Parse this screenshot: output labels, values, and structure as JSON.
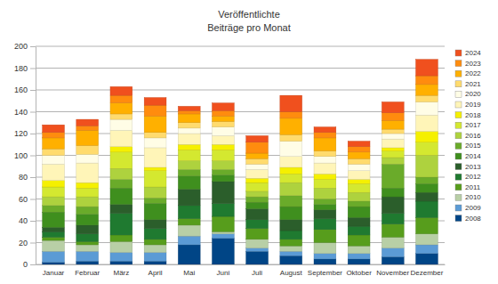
{
  "chart_data": {
    "type": "bar",
    "stacked": true,
    "grid": true,
    "legend": "right",
    "title": "Veröffentlichte",
    "subtitle": "Beiträge pro Monat",
    "categories": [
      "Januar",
      "Februar",
      "März",
      "April",
      "Mai",
      "Juni",
      "Juli",
      "August",
      "September",
      "Oktober",
      "November",
      "Dezember"
    ],
    "ylim": [
      0,
      200
    ],
    "yticks": [
      0,
      20,
      40,
      60,
      80,
      100,
      120,
      140,
      160,
      180,
      200
    ],
    "series": [
      {
        "name": "2008",
        "color": "#004586",
        "values": [
          2,
          3,
          3,
          3,
          18,
          24,
          12,
          8,
          5,
          5,
          7,
          10
        ]
      },
      {
        "name": "2009",
        "color": "#5b9bd5",
        "values": [
          10,
          9,
          8,
          8,
          8,
          4,
          3,
          4,
          5,
          5,
          8,
          8
        ]
      },
      {
        "name": "2010",
        "color": "#b8cfa6",
        "values": [
          10,
          6,
          10,
          7,
          10,
          2,
          8,
          5,
          10,
          7,
          10,
          10
        ]
      },
      {
        "name": "2011",
        "color": "#579d1c",
        "values": [
          3,
          3,
          6,
          5,
          6,
          14,
          10,
          6,
          12,
          10,
          12,
          15
        ]
      },
      {
        "name": "2012",
        "color": "#1f7a30",
        "values": [
          5,
          7,
          20,
          10,
          12,
          12,
          8,
          8,
          10,
          8,
          10,
          15
        ]
      },
      {
        "name": "2013",
        "color": "#2b5e2b",
        "values": [
          4,
          8,
          8,
          8,
          15,
          20,
          10,
          10,
          8,
          8,
          15,
          8
        ]
      },
      {
        "name": "2014",
        "color": "#3f8f1e",
        "values": [
          14,
          10,
          15,
          15,
          12,
          6,
          6,
          12,
          5,
          10,
          8,
          8
        ]
      },
      {
        "name": "2015",
        "color": "#6aab2a",
        "values": [
          6,
          7,
          8,
          5,
          6,
          5,
          5,
          10,
          5,
          5,
          22,
          6
        ]
      },
      {
        "name": "2016",
        "color": "#aed23e",
        "values": [
          8,
          9,
          10,
          10,
          8,
          8,
          5,
          12,
          10,
          8,
          6,
          20
        ]
      },
      {
        "name": "2017",
        "color": "#d4e830",
        "values": [
          9,
          8,
          15,
          15,
          10,
          10,
          8,
          8,
          8,
          8,
          6,
          12
        ]
      },
      {
        "name": "2018",
        "color": "#f5f000",
        "values": [
          6,
          5,
          5,
          3,
          5,
          5,
          4,
          6,
          5,
          4,
          3,
          10
        ]
      },
      {
        "name": "2019",
        "color": "#fff5b8",
        "values": [
          15,
          18,
          15,
          18,
          10,
          8,
          8,
          10,
          10,
          8,
          8,
          15
        ]
      },
      {
        "name": "2020",
        "color": "#fffde6",
        "values": [
          8,
          8,
          10,
          9,
          5,
          8,
          5,
          14,
          6,
          6,
          5,
          12
        ]
      },
      {
        "name": "2021",
        "color": "#ffdb6e",
        "values": [
          6,
          8,
          5,
          5,
          5,
          5,
          5,
          6,
          5,
          5,
          4,
          6
        ]
      },
      {
        "name": "2022",
        "color": "#ffb000",
        "values": [
          10,
          14,
          10,
          15,
          8,
          5,
          5,
          15,
          12,
          6,
          8,
          10
        ]
      },
      {
        "name": "2023",
        "color": "#ff8c0e",
        "values": [
          5,
          4,
          7,
          10,
          3,
          5,
          10,
          6,
          5,
          5,
          7,
          8
        ]
      },
      {
        "name": "2024",
        "color": "#f0501e",
        "values": [
          7,
          6,
          8,
          7,
          4,
          7,
          6,
          15,
          5,
          5,
          10,
          15
        ]
      }
    ]
  }
}
